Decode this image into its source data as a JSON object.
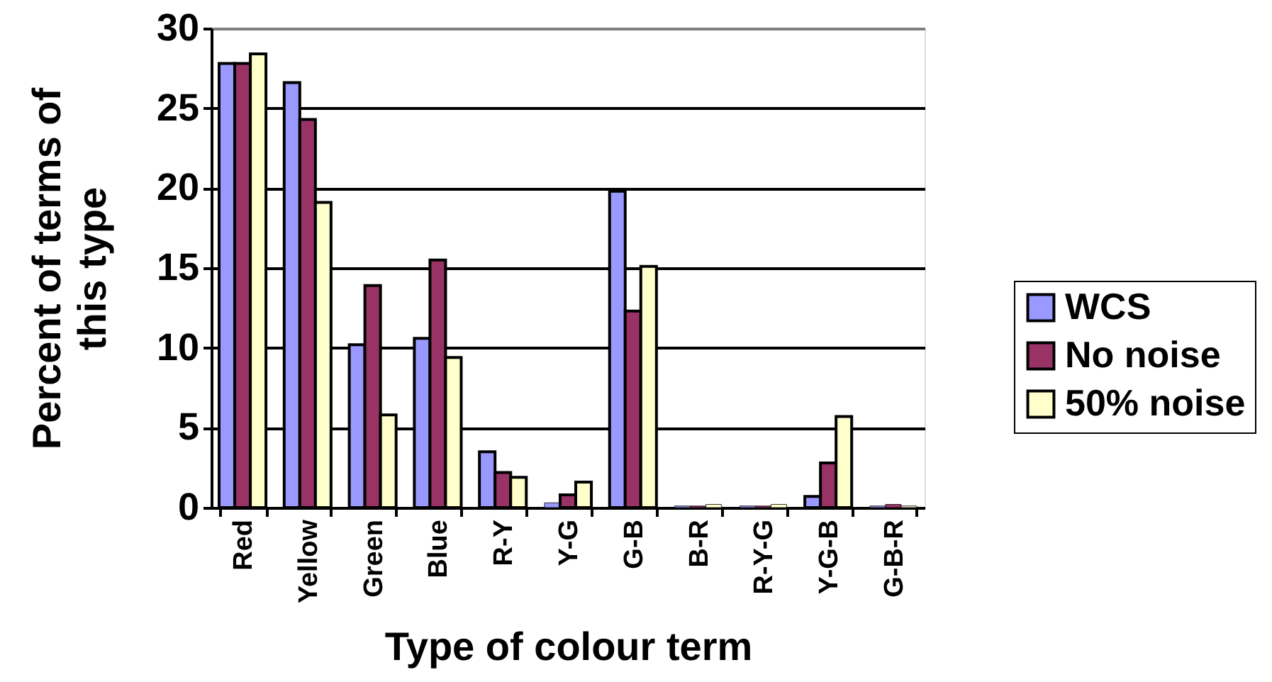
{
  "chart_data": {
    "type": "bar",
    "xlabel": "Type of colour term",
    "ylabel": "Percent of terms of this type",
    "categories": [
      "Red",
      "Yellow",
      "Green",
      "Blue",
      "R-Y",
      "Y-G",
      "G-B",
      "B-R",
      "R-Y-G",
      "Y-G-B",
      "G-B-R"
    ],
    "series": [
      {
        "name": "WCS",
        "color": "#9999ff",
        "values": [
          27.8,
          26.6,
          10.2,
          10.6,
          3.5,
          0.3,
          19.8,
          0.1,
          0.1,
          0.7,
          0.1
        ]
      },
      {
        "name": "No noise",
        "color": "#993366",
        "values": [
          27.8,
          24.3,
          13.9,
          15.5,
          2.2,
          0.8,
          12.3,
          0.1,
          0.1,
          2.8,
          0.2
        ]
      },
      {
        "name": "50% noise",
        "color": "#ffffcc",
        "values": [
          28.4,
          19.1,
          5.8,
          9.4,
          1.9,
          1.6,
          15.1,
          0.2,
          0.2,
          5.7,
          0.1
        ]
      }
    ],
    "ylim": [
      0,
      30
    ],
    "yticks": [
      0,
      5,
      10,
      15,
      20,
      25,
      30
    ],
    "grid": "y",
    "legend": "right"
  }
}
